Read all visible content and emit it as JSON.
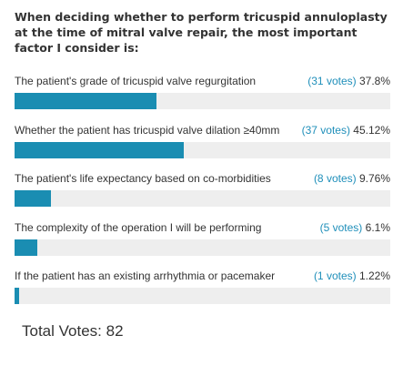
{
  "poll": {
    "question": "When deciding whether to perform tricuspid annuloplasty at the time of mitral valve repair, the most important factor I consider is:",
    "answers": [
      {
        "text": "The patient's grade of tricuspid valve regurgitation",
        "votes": "(31 votes)",
        "percent": "37.8%",
        "fraction": 0.378
      },
      {
        "text": "Whether the patient has tricuspid valve dilation ≥40mm",
        "votes": "(37 votes)",
        "percent": "45.12%",
        "fraction": 0.4512
      },
      {
        "text": "The patient's life expectancy based on co-morbidities",
        "votes": "(8 votes)",
        "percent": "9.76%",
        "fraction": 0.0976
      },
      {
        "text": "The complexity of the operation I will be performing",
        "votes": "(5 votes)",
        "percent": "6.1%",
        "fraction": 0.061
      },
      {
        "text": "If the patient has an existing arrhythmia or pacemaker",
        "votes": "(1 votes)",
        "percent": "1.22%",
        "fraction": 0.0122
      }
    ],
    "total_votes_label": "Total Votes: 82",
    "colors": {
      "bar_fill": "#1a8db2",
      "bar_track": "#eeeeee",
      "votes_link": "#1f8fba"
    }
  }
}
